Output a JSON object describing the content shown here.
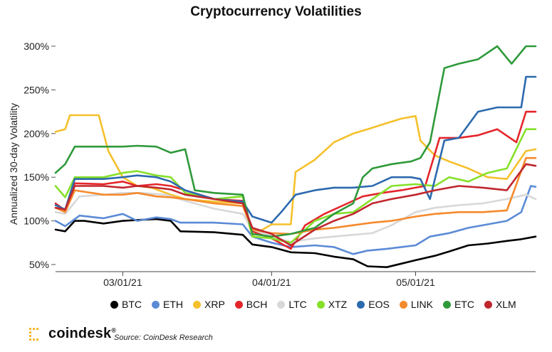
{
  "brand": {
    "name": "coindesk",
    "reg": "®"
  },
  "source_text": "Source: CoinDesk Research",
  "chart_data": {
    "type": "line",
    "title": "Cryptocurrency Volatilities",
    "ylabel": "Annualized 30-day Volatility",
    "xlabel": "",
    "ylim": [
      45,
      305
    ],
    "xlim": [
      "2021-02-15",
      "2021-05-26"
    ],
    "yticks": [
      50,
      100,
      150,
      200,
      250,
      300
    ],
    "ytick_labels": [
      "50%",
      "100%",
      "150%",
      "200%",
      "250%",
      "300%"
    ],
    "xticks": [
      "2021-03-01",
      "2021-04-01",
      "2021-05-01"
    ],
    "xtick_labels": [
      "03/01/21",
      "04/01/21",
      "05/01/21"
    ],
    "grid": false,
    "legend_position": "bottom",
    "series": [
      {
        "name": "BTC",
        "color": "#000000",
        "x": [
          "2021-02-15",
          "2021-02-17",
          "2021-02-19",
          "2021-02-21",
          "2021-02-25",
          "2021-03-01",
          "2021-03-04",
          "2021-03-08",
          "2021-03-11",
          "2021-03-13",
          "2021-03-20",
          "2021-03-26",
          "2021-03-28",
          "2021-04-01",
          "2021-04-05",
          "2021-04-10",
          "2021-04-14",
          "2021-04-18",
          "2021-04-21",
          "2021-04-25",
          "2021-04-28",
          "2021-05-01",
          "2021-05-05",
          "2021-05-08",
          "2021-05-12",
          "2021-05-16",
          "2021-05-20",
          "2021-05-23",
          "2021-05-26"
        ],
        "values": [
          90,
          88,
          100,
          100,
          97,
          100,
          101,
          102,
          100,
          88,
          87,
          84,
          73,
          70,
          64,
          63,
          59,
          56,
          48,
          47,
          51,
          55,
          60,
          65,
          72,
          74,
          77,
          79,
          82
        ]
      },
      {
        "name": "ETH",
        "color": "#5b8bd6",
        "x": [
          "2021-02-15",
          "2021-02-17",
          "2021-02-20",
          "2021-02-25",
          "2021-03-01",
          "2021-03-04",
          "2021-03-08",
          "2021-03-11",
          "2021-03-13",
          "2021-03-20",
          "2021-03-26",
          "2021-03-28",
          "2021-04-01",
          "2021-04-05",
          "2021-04-10",
          "2021-04-14",
          "2021-04-18",
          "2021-04-21",
          "2021-04-25",
          "2021-04-28",
          "2021-05-01",
          "2021-05-04",
          "2021-05-08",
          "2021-05-12",
          "2021-05-16",
          "2021-05-20",
          "2021-05-23",
          "2021-05-25",
          "2021-05-26"
        ],
        "values": [
          100,
          94,
          106,
          103,
          108,
          100,
          104,
          102,
          98,
          98,
          96,
          82,
          75,
          70,
          72,
          70,
          62,
          66,
          68,
          70,
          72,
          82,
          86,
          92,
          96,
          100,
          110,
          140,
          139
        ]
      },
      {
        "name": "XRP",
        "color": "#f5c02c",
        "x": [
          "2021-02-15",
          "2021-02-17",
          "2021-02-18",
          "2021-02-24",
          "2021-02-26",
          "2021-03-01",
          "2021-03-04",
          "2021-03-07",
          "2021-03-11",
          "2021-03-14",
          "2021-03-20",
          "2021-03-26",
          "2021-03-28",
          "2021-04-01",
          "2021-04-05",
          "2021-04-06",
          "2021-04-10",
          "2021-04-14",
          "2021-04-18",
          "2021-04-21",
          "2021-04-25",
          "2021-04-28",
          "2021-05-01",
          "2021-05-02",
          "2021-05-05",
          "2021-05-08",
          "2021-05-12",
          "2021-05-16",
          "2021-05-20",
          "2021-05-24",
          "2021-05-26"
        ],
        "values": [
          202,
          205,
          221,
          221,
          180,
          150,
          140,
          138,
          130,
          125,
          122,
          120,
          83,
          96,
          96,
          156,
          170,
          190,
          200,
          205,
          212,
          217,
          220,
          192,
          175,
          168,
          160,
          150,
          148,
          180,
          182
        ]
      },
      {
        "name": "BCH",
        "color": "#e4262b",
        "x": [
          "2021-02-15",
          "2021-02-17",
          "2021-02-19",
          "2021-02-25",
          "2021-03-01",
          "2021-03-04",
          "2021-03-08",
          "2021-03-11",
          "2021-03-14",
          "2021-03-20",
          "2021-03-26",
          "2021-03-28",
          "2021-04-01",
          "2021-04-05",
          "2021-04-08",
          "2021-04-12",
          "2021-04-16",
          "2021-04-20",
          "2021-04-24",
          "2021-04-28",
          "2021-05-01",
          "2021-05-03",
          "2021-05-06",
          "2021-05-10",
          "2021-05-14",
          "2021-05-18",
          "2021-05-22",
          "2021-05-24",
          "2021-05-26"
        ],
        "values": [
          120,
          112,
          143,
          142,
          145,
          140,
          142,
          140,
          135,
          125,
          123,
          88,
          80,
          68,
          95,
          108,
          118,
          128,
          132,
          135,
          138,
          140,
          195,
          195,
          198,
          205,
          190,
          225,
          225
        ]
      },
      {
        "name": "LTC",
        "color": "#d8d8d8",
        "x": [
          "2021-02-15",
          "2021-02-17",
          "2021-02-20",
          "2021-02-25",
          "2021-03-01",
          "2021-03-05",
          "2021-03-10",
          "2021-03-14",
          "2021-03-20",
          "2021-03-26",
          "2021-03-28",
          "2021-04-01",
          "2021-04-05",
          "2021-04-10",
          "2021-04-14",
          "2021-04-18",
          "2021-04-22",
          "2021-04-26",
          "2021-05-01",
          "2021-05-05",
          "2021-05-10",
          "2021-05-15",
          "2021-05-20",
          "2021-05-24",
          "2021-05-26"
        ],
        "values": [
          110,
          108,
          128,
          130,
          132,
          132,
          130,
          123,
          114,
          108,
          90,
          82,
          76,
          80,
          82,
          84,
          86,
          95,
          110,
          115,
          118,
          120,
          125,
          130,
          125
        ]
      },
      {
        "name": "XTZ",
        "color": "#86e02a",
        "x": [
          "2021-02-15",
          "2021-02-17",
          "2021-02-19",
          "2021-02-25",
          "2021-03-01",
          "2021-03-04",
          "2021-03-08",
          "2021-03-11",
          "2021-03-14",
          "2021-03-20",
          "2021-03-26",
          "2021-03-28",
          "2021-04-01",
          "2021-04-05",
          "2021-04-10",
          "2021-04-14",
          "2021-04-18",
          "2021-04-22",
          "2021-04-26",
          "2021-05-01",
          "2021-05-05",
          "2021-05-08",
          "2021-05-12",
          "2021-05-16",
          "2021-05-20",
          "2021-05-24",
          "2021-05-26"
        ],
        "values": [
          140,
          127,
          150,
          150,
          155,
          157,
          152,
          150,
          132,
          125,
          128,
          82,
          80,
          75,
          100,
          108,
          110,
          125,
          140,
          142,
          140,
          150,
          145,
          155,
          160,
          205,
          205
        ]
      },
      {
        "name": "EOS",
        "color": "#2c6aae",
        "x": [
          "2021-02-15",
          "2021-02-17",
          "2021-02-19",
          "2021-02-25",
          "2021-03-01",
          "2021-03-04",
          "2021-03-08",
          "2021-03-11",
          "2021-03-14",
          "2021-03-20",
          "2021-03-26",
          "2021-03-28",
          "2021-04-01",
          "2021-04-03",
          "2021-04-06",
          "2021-04-10",
          "2021-04-14",
          "2021-04-18",
          "2021-04-22",
          "2021-04-26",
          "2021-04-30",
          "2021-05-02",
          "2021-05-04",
          "2021-05-07",
          "2021-05-10",
          "2021-05-14",
          "2021-05-18",
          "2021-05-21",
          "2021-05-23",
          "2021-05-24",
          "2021-05-26"
        ],
        "values": [
          118,
          113,
          148,
          148,
          150,
          152,
          150,
          145,
          135,
          125,
          122,
          105,
          98,
          110,
          130,
          135,
          138,
          138,
          140,
          150,
          150,
          148,
          125,
          192,
          195,
          225,
          230,
          230,
          230,
          265,
          265
        ]
      },
      {
        "name": "LINK",
        "color": "#f58a2c",
        "x": [
          "2021-02-15",
          "2021-02-17",
          "2021-02-19",
          "2021-02-25",
          "2021-03-01",
          "2021-03-04",
          "2021-03-08",
          "2021-03-11",
          "2021-03-14",
          "2021-03-20",
          "2021-03-26",
          "2021-03-28",
          "2021-04-01",
          "2021-04-05",
          "2021-04-10",
          "2021-04-14",
          "2021-04-18",
          "2021-04-22",
          "2021-04-26",
          "2021-05-01",
          "2021-05-05",
          "2021-05-10",
          "2021-05-15",
          "2021-05-20",
          "2021-05-24",
          "2021-05-26"
        ],
        "values": [
          115,
          110,
          135,
          130,
          130,
          132,
          128,
          127,
          125,
          120,
          117,
          90,
          86,
          85,
          90,
          92,
          95,
          98,
          100,
          105,
          108,
          110,
          110,
          112,
          172,
          172
        ]
      },
      {
        "name": "ETC",
        "color": "#2f9a3a",
        "x": [
          "2021-02-15",
          "2021-02-17",
          "2021-02-19",
          "2021-02-25",
          "2021-03-01",
          "2021-03-04",
          "2021-03-08",
          "2021-03-11",
          "2021-03-14",
          "2021-03-16",
          "2021-03-20",
          "2021-03-26",
          "2021-03-28",
          "2021-04-01",
          "2021-04-05",
          "2021-04-10",
          "2021-04-14",
          "2021-04-18",
          "2021-04-20",
          "2021-04-22",
          "2021-04-26",
          "2021-04-30",
          "2021-05-02",
          "2021-05-04",
          "2021-05-07",
          "2021-05-10",
          "2021-05-14",
          "2021-05-18",
          "2021-05-21",
          "2021-05-24",
          "2021-05-26"
        ],
        "values": [
          155,
          165,
          185,
          185,
          185,
          186,
          185,
          178,
          182,
          135,
          132,
          130,
          85,
          82,
          85,
          92,
          108,
          120,
          150,
          160,
          165,
          168,
          172,
          190,
          275,
          280,
          285,
          300,
          280,
          300,
          300
        ]
      },
      {
        "name": "XLM",
        "color": "#c0272d",
        "x": [
          "2021-02-15",
          "2021-02-17",
          "2021-02-19",
          "2021-02-25",
          "2021-03-01",
          "2021-03-04",
          "2021-03-08",
          "2021-03-11",
          "2021-03-14",
          "2021-03-20",
          "2021-03-26",
          "2021-03-28",
          "2021-04-01",
          "2021-04-05",
          "2021-04-10",
          "2021-04-14",
          "2021-04-18",
          "2021-04-22",
          "2021-04-26",
          "2021-05-01",
          "2021-05-05",
          "2021-05-10",
          "2021-05-15",
          "2021-05-20",
          "2021-05-24",
          "2021-05-26"
        ],
        "values": [
          115,
          113,
          140,
          140,
          138,
          140,
          138,
          136,
          130,
          125,
          120,
          92,
          85,
          72,
          90,
          100,
          108,
          120,
          125,
          130,
          135,
          140,
          138,
          135,
          165,
          163
        ]
      }
    ]
  }
}
